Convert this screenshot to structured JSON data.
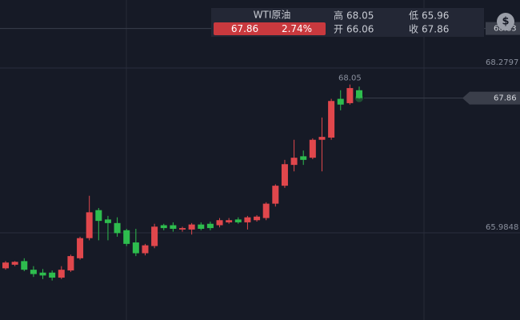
{
  "quote": {
    "name": "WTI原油",
    "price": "67.86",
    "change": "2.74%",
    "high_label": "高",
    "high": "68.05",
    "low_label": "低",
    "low": "65.96",
    "open_label": "开",
    "open": "66.06",
    "close_label": "收",
    "close": "67.86"
  },
  "chart_data": {
    "type": "candlestick",
    "open": [
      65.49,
      65.54,
      65.59,
      65.47,
      65.43,
      65.43,
      65.36,
      65.46,
      65.63,
      65.91,
      66.3,
      66.17,
      66.12,
      66.02,
      65.85,
      65.7,
      65.8,
      66.09,
      66.09,
      66.03,
      66.03,
      66.1,
      66.11,
      66.09,
      66.13,
      66.17,
      66.13,
      66.16,
      66.19,
      66.39,
      66.64,
      66.93,
      67.05,
      67.03,
      67.28,
      67.31,
      67.85,
      67.79,
      67.97
    ],
    "high": [
      65.59,
      65.59,
      65.63,
      65.52,
      65.48,
      65.46,
      65.52,
      65.68,
      65.93,
      66.5,
      66.33,
      66.22,
      66.2,
      66.04,
      66.04,
      65.83,
      66.11,
      66.11,
      66.13,
      66.07,
      66.12,
      66.13,
      66.14,
      66.19,
      66.19,
      66.2,
      66.22,
      66.23,
      66.41,
      66.66,
      67.0,
      67.28,
      67.13,
      67.3,
      67.59,
      67.85,
      67.97,
      68.05,
      68.02
    ],
    "low": [
      65.47,
      65.52,
      65.45,
      65.37,
      65.34,
      65.32,
      65.34,
      65.44,
      65.61,
      65.88,
      65.88,
      65.88,
      65.93,
      65.8,
      65.66,
      65.67,
      65.77,
      66.02,
      66.0,
      66.0,
      65.96,
      66.02,
      66.02,
      66.06,
      66.11,
      66.11,
      66.03,
      66.14,
      66.16,
      66.35,
      66.61,
      66.84,
      66.93,
      67.01,
      66.84,
      67.28,
      67.69,
      67.77,
      67.85
    ],
    "close": [
      65.57,
      65.58,
      65.47,
      65.41,
      65.39,
      65.36,
      65.47,
      65.66,
      65.91,
      66.27,
      66.15,
      66.12,
      65.98,
      65.83,
      65.7,
      65.81,
      66.07,
      66.05,
      66.04,
      66.05,
      66.1,
      66.04,
      66.05,
      66.16,
      66.16,
      66.13,
      66.2,
      66.21,
      66.39,
      66.64,
      66.94,
      67.03,
      67.0,
      67.28,
      67.32,
      67.82,
      67.77,
      68.0,
      67.86
    ],
    "up_color": "#e0474c",
    "down_color": "#2ebd4e",
    "ylim": [
      64.77,
      69.2266
    ],
    "yticks": [
      68.2797,
      65.9848
    ],
    "grid": true,
    "annotation": "68.05",
    "top_line": 68.83,
    "last_price": 67.86
  }
}
